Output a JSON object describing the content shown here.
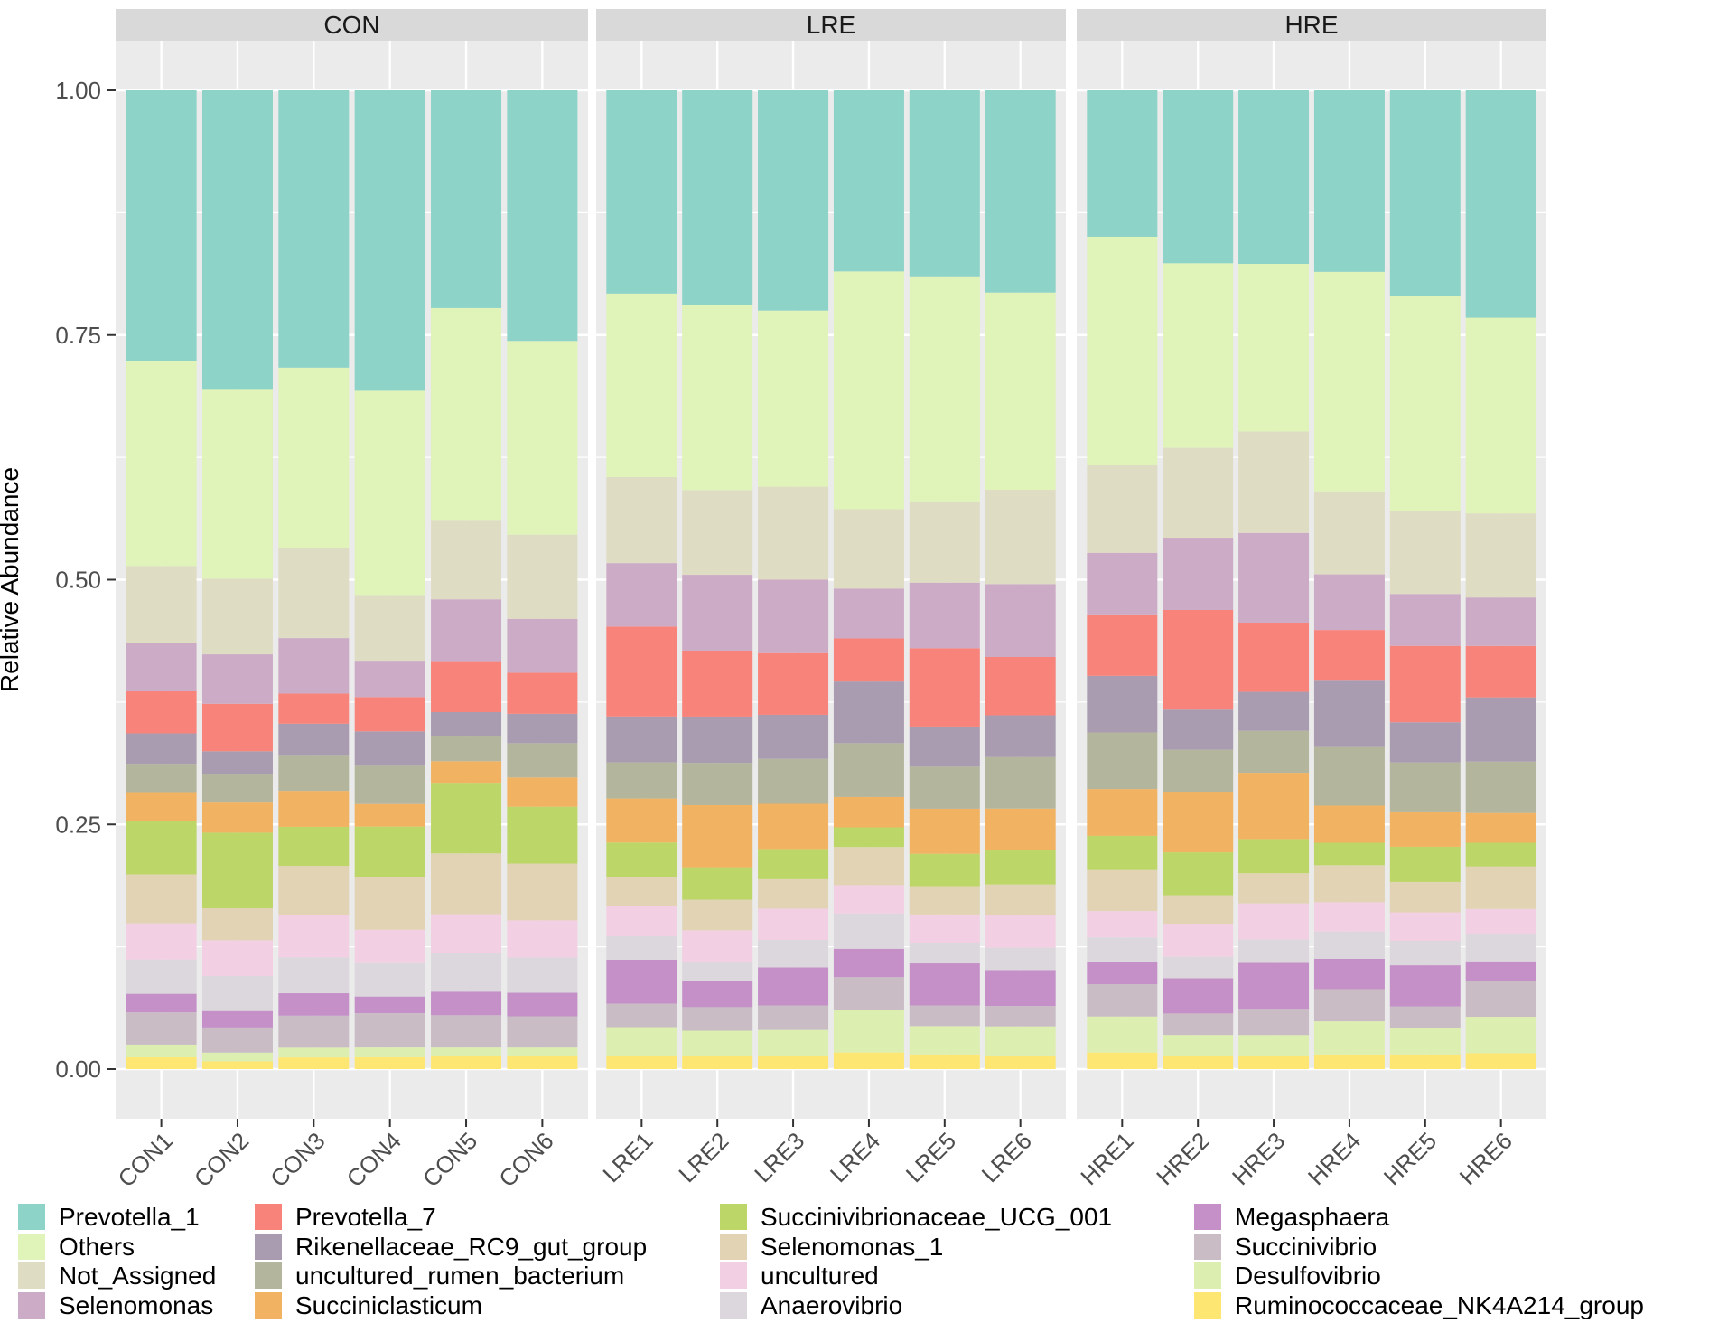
{
  "chart_data": {
    "type": "bar",
    "stacked": true,
    "ylabel": "Relative Abundance",
    "ylim": [
      -0.05,
      1.05
    ],
    "yticks": [
      {
        "value": 0,
        "label": "0.00"
      },
      {
        "value": 0.25,
        "label": "0.25"
      },
      {
        "value": 0.5,
        "label": "0.50"
      },
      {
        "value": 0.75,
        "label": "0.75"
      },
      {
        "value": 1,
        "label": "1.00"
      }
    ],
    "legend_position": "bottom",
    "taxa": [
      {
        "name": "Prevotella_1",
        "color": "#8dd3c7"
      },
      {
        "name": "Others",
        "color": "#e0f3b9"
      },
      {
        "name": "Not_Assigned",
        "color": "#dfdcc4"
      },
      {
        "name": "Selenomonas",
        "color": "#ccabc6"
      },
      {
        "name": "Prevotella_7",
        "color": "#f7837a"
      },
      {
        "name": "Rikenellaceae_RC9_gut_group",
        "color": "#a99cb0"
      },
      {
        "name": "uncultured_rumen_bacterium",
        "color": "#b4b59d"
      },
      {
        "name": "Succiniclasticum",
        "color": "#f1b262"
      },
      {
        "name": "Succinivibrionaceae_UCG_001",
        "color": "#bdd668"
      },
      {
        "name": "Selenomonas_1",
        "color": "#e1d3b3"
      },
      {
        "name": "uncultured",
        "color": "#f2cfe2"
      },
      {
        "name": "Anaerovibrio",
        "color": "#dbd7dc"
      },
      {
        "name": "Megasphaera",
        "color": "#c490c7"
      },
      {
        "name": "Succinivibrio",
        "color": "#c9bcc4"
      },
      {
        "name": "Desulfovibrio",
        "color": "#ddeeb1"
      },
      {
        "name": "Ruminococcaceae_NK4A214_group",
        "color": "#fde772"
      }
    ],
    "legend_columns": [
      [
        0,
        1,
        2,
        3
      ],
      [
        4,
        5,
        6,
        7
      ],
      [
        8,
        9,
        10,
        11
      ],
      [
        12,
        13,
        14,
        15
      ]
    ],
    "stack_order_bottom_to_top": [
      15,
      14,
      13,
      12,
      11,
      10,
      9,
      8,
      7,
      6,
      5,
      4,
      3,
      2,
      1,
      0
    ],
    "panels": [
      {
        "name": "CON",
        "samples": [
          {
            "name": "CON1",
            "values": [
              0.277,
              0.209,
              0.079,
              0.049,
              0.043,
              0.031,
              0.029,
              0.03,
              0.054,
              0.05,
              0.037,
              0.035,
              0.019,
              0.033,
              0.013,
              0.012
            ]
          },
          {
            "name": "CON2",
            "values": [
              0.309,
              0.195,
              0.078,
              0.051,
              0.049,
              0.024,
              0.029,
              0.031,
              0.078,
              0.033,
              0.037,
              0.036,
              0.017,
              0.026,
              0.009,
              0.008
            ]
          },
          {
            "name": "CON3",
            "values": [
              0.285,
              0.185,
              0.093,
              0.057,
              0.031,
              0.033,
              0.036,
              0.037,
              0.04,
              0.051,
              0.043,
              0.037,
              0.023,
              0.033,
              0.01,
              0.012
            ]
          },
          {
            "name": "CON4",
            "values": [
              0.306,
              0.208,
              0.067,
              0.037,
              0.035,
              0.035,
              0.039,
              0.023,
              0.051,
              0.054,
              0.034,
              0.034,
              0.017,
              0.035,
              0.01,
              0.012
            ]
          },
          {
            "name": "CON5",
            "values": [
              0.222,
              0.216,
              0.081,
              0.063,
              0.052,
              0.024,
              0.026,
              0.022,
              0.072,
              0.062,
              0.04,
              0.039,
              0.024,
              0.033,
              0.009,
              0.013
            ]
          },
          {
            "name": "CON6",
            "values": [
              0.256,
              0.198,
              0.086,
              0.055,
              0.042,
              0.03,
              0.035,
              0.03,
              0.058,
              0.058,
              0.038,
              0.036,
              0.024,
              0.032,
              0.009,
              0.013
            ]
          }
        ]
      },
      {
        "name": "LRE",
        "samples": [
          {
            "name": "LRE1",
            "values": [
              0.208,
              0.188,
              0.088,
              0.065,
              0.092,
              0.047,
              0.037,
              0.045,
              0.035,
              0.03,
              0.031,
              0.024,
              0.045,
              0.024,
              0.03,
              0.013
            ]
          },
          {
            "name": "LRE2",
            "values": [
              0.218,
              0.188,
              0.086,
              0.077,
              0.067,
              0.047,
              0.043,
              0.063,
              0.033,
              0.031,
              0.032,
              0.019,
              0.027,
              0.024,
              0.026,
              0.013
            ]
          },
          {
            "name": "LRE3",
            "values": [
              0.225,
              0.18,
              0.095,
              0.075,
              0.063,
              0.045,
              0.046,
              0.047,
              0.03,
              0.03,
              0.032,
              0.028,
              0.039,
              0.025,
              0.027,
              0.013
            ]
          },
          {
            "name": "LRE4",
            "values": [
              0.185,
              0.243,
              0.081,
              0.051,
              0.044,
              0.063,
              0.055,
              0.031,
              0.02,
              0.039,
              0.029,
              0.036,
              0.029,
              0.034,
              0.043,
              0.017
            ]
          },
          {
            "name": "LRE5",
            "values": [
              0.19,
              0.23,
              0.083,
              0.067,
              0.08,
              0.041,
              0.043,
              0.046,
              0.033,
              0.029,
              0.029,
              0.021,
              0.043,
              0.021,
              0.029,
              0.015
            ]
          },
          {
            "name": "LRE6",
            "values": [
              0.208,
              0.203,
              0.097,
              0.075,
              0.06,
              0.043,
              0.053,
              0.043,
              0.035,
              0.032,
              0.033,
              0.023,
              0.037,
              0.021,
              0.03,
              0.014
            ]
          }
        ]
      },
      {
        "name": "HRE",
        "samples": [
          {
            "name": "HRE1",
            "values": [
              0.15,
              0.234,
              0.09,
              0.063,
              0.063,
              0.058,
              0.058,
              0.048,
              0.035,
              0.042,
              0.027,
              0.025,
              0.023,
              0.033,
              0.037,
              0.017
            ]
          },
          {
            "name": "HRE2",
            "values": [
              0.177,
              0.189,
              0.092,
              0.074,
              0.102,
              0.041,
              0.043,
              0.062,
              0.044,
              0.03,
              0.033,
              0.022,
              0.036,
              0.022,
              0.022,
              0.013
            ]
          },
          {
            "name": "HRE3",
            "values": [
              0.178,
              0.172,
              0.104,
              0.092,
              0.071,
              0.04,
              0.043,
              0.068,
              0.035,
              0.031,
              0.037,
              0.024,
              0.048,
              0.026,
              0.022,
              0.013
            ]
          },
          {
            "name": "HRE4",
            "values": [
              0.186,
              0.225,
              0.085,
              0.057,
              0.052,
              0.068,
              0.06,
              0.038,
              0.023,
              0.038,
              0.03,
              0.028,
              0.031,
              0.033,
              0.034,
              0.015
            ]
          },
          {
            "name": "HRE5",
            "values": [
              0.21,
              0.219,
              0.085,
              0.053,
              0.078,
              0.041,
              0.05,
              0.036,
              0.036,
              0.031,
              0.029,
              0.025,
              0.042,
              0.022,
              0.027,
              0.015
            ]
          },
          {
            "name": "HRE6",
            "values": [
              0.23,
              0.198,
              0.085,
              0.049,
              0.052,
              0.065,
              0.052,
              0.03,
              0.024,
              0.043,
              0.025,
              0.028,
              0.02,
              0.036,
              0.037,
              0.016
            ]
          }
        ]
      }
    ]
  }
}
